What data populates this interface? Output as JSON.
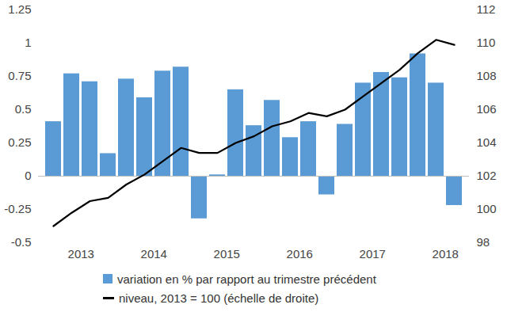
{
  "chart_data": {
    "type": "bar",
    "categories": [
      null,
      "2013",
      null,
      null,
      null,
      "2014",
      null,
      null,
      null,
      "2015",
      null,
      null,
      null,
      "2016",
      null,
      null,
      null,
      "2017",
      null,
      null,
      null,
      "2018",
      null
    ],
    "series": [
      {
        "name": "variation en % par rapport au trimestre précédent",
        "type": "bar",
        "color": "#5b9bd5",
        "values": [
          0.41,
          0.77,
          0.71,
          0.17,
          0.73,
          0.59,
          0.79,
          0.82,
          -0.32,
          0.01,
          0.65,
          0.38,
          0.57,
          0.29,
          0.41,
          -0.14,
          0.39,
          0.7,
          0.78,
          0.74,
          0.92,
          0.7,
          -0.22
        ]
      },
      {
        "name": "niveau, 2013 = 100 (échelle de droite)",
        "type": "line",
        "color": "#000000",
        "axis": "y2",
        "values": [
          99.0,
          99.8,
          100.5,
          100.7,
          101.5,
          102.1,
          102.9,
          103.7,
          103.4,
          103.4,
          104.0,
          104.4,
          105.0,
          105.3,
          105.8,
          105.6,
          106.0,
          106.8,
          107.6,
          108.4,
          109.4,
          110.2,
          109.9
        ]
      }
    ],
    "ylim": [
      -0.5,
      1.25
    ],
    "yticks": [
      -0.5,
      -0.25,
      0,
      0.25,
      0.5,
      0.75,
      1,
      1.25
    ],
    "y2lim": [
      98,
      112
    ],
    "y2ticks": [
      98,
      100,
      102,
      104,
      106,
      108,
      110,
      112
    ],
    "legend": "bottom"
  }
}
